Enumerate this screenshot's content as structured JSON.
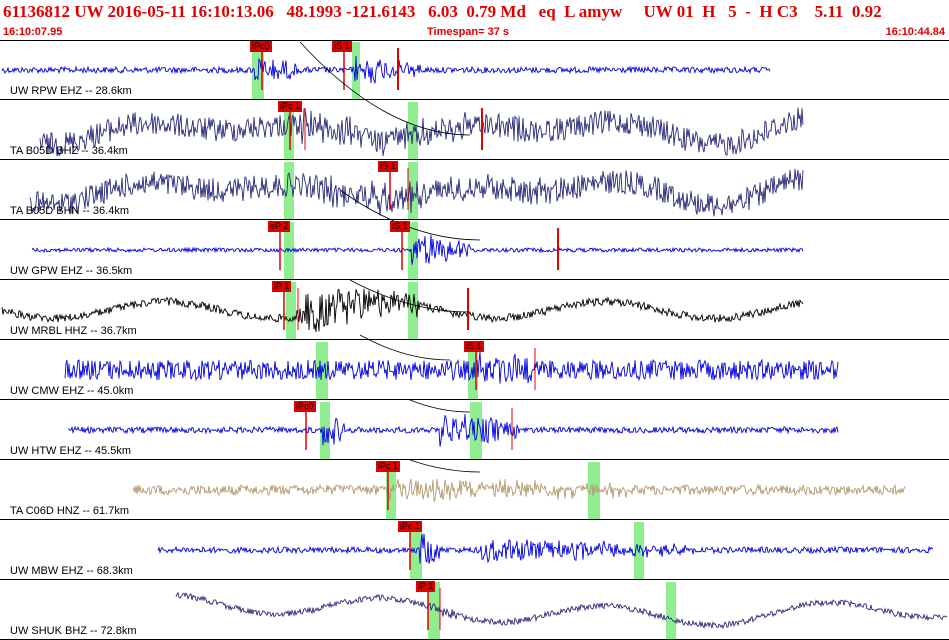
{
  "header": {
    "title": "61136812 UW 2016-05-11 16:10:13.06   48.1993 -121.6143   6.03  0.79 Md   eq  L amyw     UW 01  H   5  -  H C3    5.11  0.92",
    "start_time": "16:10:07.95",
    "timespan": "Timespan=  37 s",
    "end_time": "16:10:44.84"
  },
  "colors": {
    "header_text": "#e00000",
    "pick": "#e00000",
    "window": "#90ee90",
    "separator": "#000000"
  },
  "traces": [
    {
      "label": "UW RPW EHZ -- 28.6km",
      "color": "#0000e0",
      "picks": [
        "iPc0",
        "iS 1"
      ]
    },
    {
      "label": "TA B05D BHZ -- 36.4km",
      "color": "#2a2a7a",
      "picks": [
        "iPc 1"
      ]
    },
    {
      "label": "TA B05D BHN -- 36.4km",
      "color": "#2a2a7a",
      "picks": [
        "iS 1"
      ]
    },
    {
      "label": "UW GPW EHZ -- 36.5km",
      "color": "#0000e0",
      "picks": [
        "eP 2",
        "iS 1"
      ]
    },
    {
      "label": "UW MRBL HHZ -- 36.7km",
      "color": "#000000",
      "picks": [
        "iP 1"
      ]
    },
    {
      "label": "UW CMW EHZ -- 45.0km",
      "color": "#0000e0",
      "picks": [
        "iS 1"
      ]
    },
    {
      "label": "UW HTW EHZ -- 45.5km",
      "color": "#0000e0",
      "picks": [
        "iPc0"
      ]
    },
    {
      "label": "TA C06D HNZ -- 61.7km",
      "color": "#b39b70",
      "picks": [
        "iPc 1"
      ]
    },
    {
      "label": "UW MBW EHZ -- 68.3km",
      "color": "#0000e0",
      "picks": [
        "iPc 1"
      ]
    },
    {
      "label": "UW SHUK BHZ -- 72.8km",
      "color": "#2a2a7a",
      "picks": [
        "iP 1"
      ]
    }
  ]
}
